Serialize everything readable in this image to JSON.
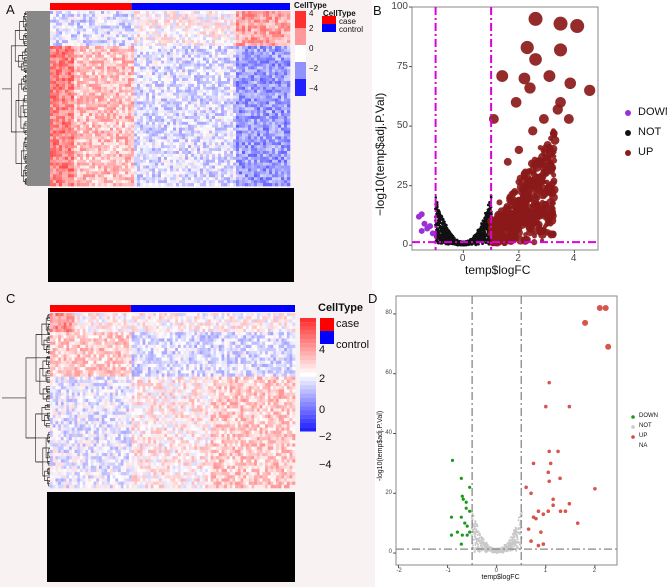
{
  "panels": {
    "a": "A",
    "b": "B",
    "c": "C",
    "d": "D"
  },
  "colors": {
    "case": "#ff0000",
    "control": "#0000ff",
    "high": "#e8302f",
    "low": "#2222ee",
    "down_b": "#9b30d9",
    "not_b": "#111111",
    "up_b": "#8b1a1a",
    "thresh_b": "#dd00dd",
    "down_d": "#1a9a1a",
    "not_d": "#c8c8c8",
    "up_d": "#d6453b",
    "thresh_d": "#888888"
  },
  "heatmap_a": {
    "legend_title": "CellType",
    "scale_ticks": [
      "4",
      "2",
      "0",
      "−2",
      "−4"
    ],
    "annotation_title": "CellType",
    "annotation_items": [
      "case",
      "control"
    ],
    "case_fraction": 0.34
  },
  "heatmap_c": {
    "legend_title": "CellType",
    "scale_ticks": [
      "4",
      "2",
      "0",
      "−2",
      "−4"
    ],
    "annotation_items": [
      "case",
      "control"
    ],
    "case_fraction": 0.33
  },
  "chart_data": [
    {
      "type": "scatter",
      "panel": "B",
      "xlabel": "temp$logFC",
      "ylabel": "−log10(temp$adj.P.Val)",
      "xlim": [
        -1.85,
        4.85
      ],
      "ylim": [
        -2,
        100
      ],
      "xticks": [
        "0",
        "2",
        "4"
      ],
      "yticks": [
        "0",
        "25",
        "50",
        "75",
        "100"
      ],
      "xtick_vals": [
        0,
        2,
        4
      ],
      "ytick_vals": [
        0,
        25,
        50,
        75,
        100
      ],
      "thresholds": {
        "x": [
          -1,
          1
        ],
        "y": 1.3
      },
      "legend": [
        "DOWN",
        "NOT",
        "UP"
      ],
      "legend_position": "right",
      "up_points": [
        [
          2.6,
          95
        ],
        [
          3.5,
          93
        ],
        [
          4.1,
          92
        ],
        [
          3.5,
          82
        ],
        [
          2.3,
          83
        ],
        [
          2.6,
          78
        ],
        [
          3.85,
          68
        ],
        [
          4.55,
          65
        ],
        [
          3.1,
          71
        ],
        [
          2.2,
          70
        ],
        [
          2.4,
          66
        ],
        [
          3.5,
          60
        ],
        [
          3.8,
          53
        ],
        [
          2.9,
          53
        ],
        [
          3.4,
          57
        ],
        [
          1.9,
          60
        ],
        [
          2.5,
          48
        ],
        [
          3.3,
          44
        ],
        [
          3.15,
          32
        ],
        [
          3.1,
          25
        ],
        [
          1.1,
          53
        ],
        [
          1.4,
          71
        ],
        [
          2.0,
          40
        ],
        [
          1.6,
          35
        ],
        [
          2.2,
          30
        ],
        [
          1.8,
          22
        ],
        [
          1.3,
          18
        ],
        [
          2.7,
          28
        ]
      ],
      "down_points": [
        [
          -1.6,
          12
        ],
        [
          -1.5,
          13
        ],
        [
          -1.4,
          9
        ],
        [
          -1.3,
          7
        ],
        [
          -1.2,
          8
        ],
        [
          -1.1,
          5
        ],
        [
          -1.5,
          6
        ]
      ]
    },
    {
      "type": "scatter",
      "panel": "D",
      "xlabel": "temp$logFC",
      "ylabel": "-log10(temp$adj.P.Val)",
      "xlim": [
        -2.05,
        2.45
      ],
      "ylim": [
        -4,
        86
      ],
      "xticks": [
        "-2",
        "-1",
        "0",
        "1",
        "2"
      ],
      "yticks": [
        "0",
        "20",
        "40",
        "60",
        "80"
      ],
      "xtick_vals": [
        -2,
        -1,
        0,
        1,
        2
      ],
      "ytick_vals": [
        0,
        20,
        40,
        60,
        80
      ],
      "thresholds": {
        "x": [
          -0.5,
          0.5
        ],
        "y": 1.3
      },
      "legend": [
        "DOWN",
        "NOT",
        "UP",
        "NA"
      ],
      "legend_position": "right",
      "up_points": [
        [
          2.1,
          82
        ],
        [
          2.22,
          82
        ],
        [
          1.8,
          77
        ],
        [
          2.27,
          69
        ],
        [
          1.07,
          57
        ],
        [
          1.0,
          49
        ],
        [
          1.48,
          49
        ],
        [
          1.07,
          34
        ],
        [
          1.25,
          34
        ],
        [
          1.1,
          30
        ],
        [
          0.75,
          30
        ],
        [
          1.05,
          27
        ],
        [
          1.29,
          25
        ],
        [
          1.07,
          24
        ],
        [
          2.0,
          21.5
        ],
        [
          0.6,
          22
        ],
        [
          0.7,
          20
        ],
        [
          1.15,
          18
        ],
        [
          1.48,
          16.5
        ],
        [
          1.15,
          16
        ],
        [
          0.85,
          14
        ],
        [
          1.05,
          14
        ],
        [
          1.3,
          14
        ],
        [
          1.4,
          14
        ],
        [
          1.65,
          10
        ],
        [
          0.75,
          12
        ],
        [
          0.8,
          11.5
        ],
        [
          0.95,
          13
        ],
        [
          0.65,
          8
        ],
        [
          0.9,
          7
        ],
        [
          0.7,
          4
        ],
        [
          0.85,
          2.5
        ],
        [
          0.95,
          3
        ]
      ],
      "down_points": [
        [
          -0.9,
          31
        ],
        [
          -0.72,
          25
        ],
        [
          -0.7,
          19
        ],
        [
          -0.68,
          18
        ],
        [
          -0.62,
          17
        ],
        [
          -0.55,
          22
        ],
        [
          -0.92,
          12
        ],
        [
          -0.72,
          12
        ],
        [
          -0.55,
          14
        ],
        [
          -0.62,
          15
        ],
        [
          -0.8,
          7
        ],
        [
          -0.92,
          6
        ],
        [
          -0.6,
          6
        ],
        [
          -0.55,
          7
        ],
        [
          -0.7,
          6
        ],
        [
          -0.72,
          3
        ],
        [
          -0.6,
          9
        ],
        [
          -0.65,
          10
        ]
      ]
    }
  ]
}
